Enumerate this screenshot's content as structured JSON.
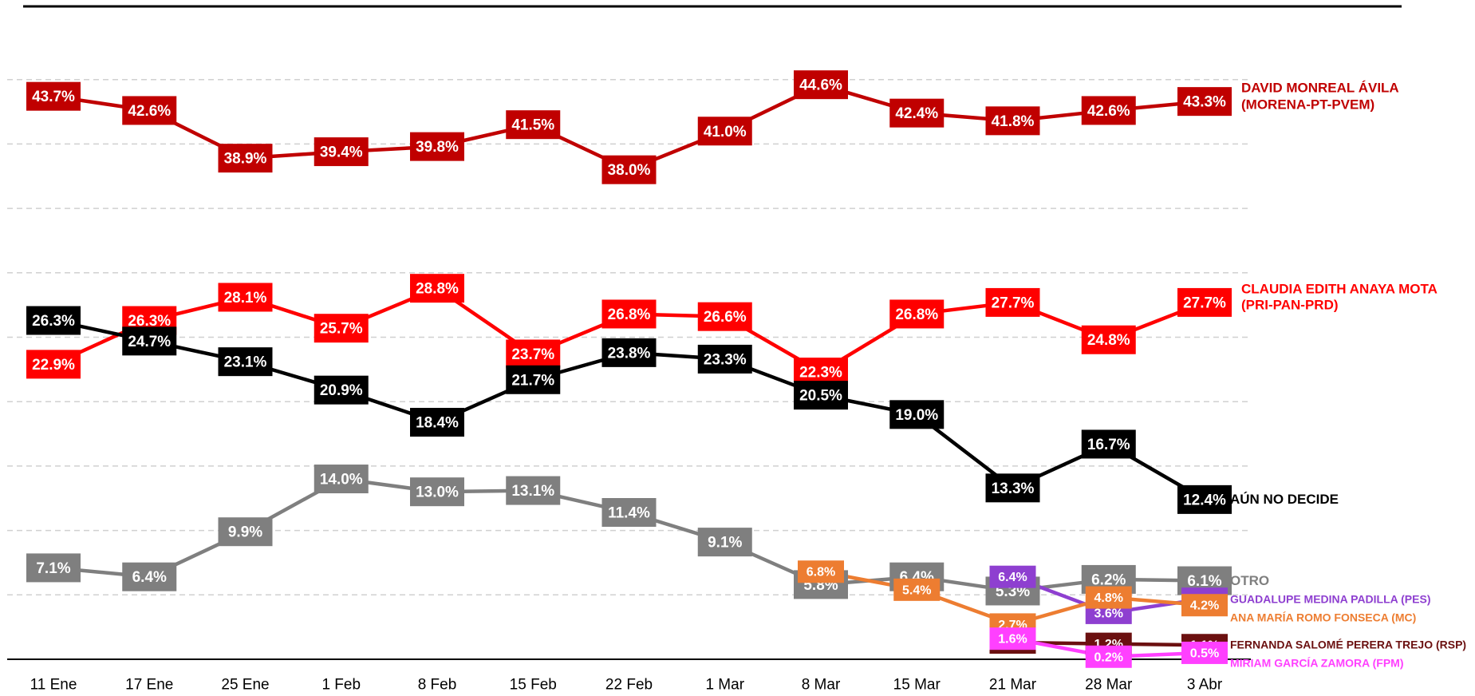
{
  "chart_data": {
    "type": "line",
    "categories": [
      "11 Ene",
      "17 Ene",
      "25 Ene",
      "1 Feb",
      "8 Feb",
      "15 Feb",
      "22 Feb",
      "1 Mar",
      "8 Mar",
      "15 Mar",
      "21 Mar",
      "28 Mar",
      "3 Abr"
    ],
    "ylim": [
      0,
      50
    ],
    "yticks": [
      5,
      10,
      15,
      20,
      25,
      30,
      35,
      40,
      45
    ],
    "grid": true,
    "series": [
      {
        "name": "DAVID MONREAL ÁVILA (MORENA-PT-PVEM)",
        "color": "#c00000",
        "values": [
          43.7,
          42.6,
          38.9,
          39.4,
          39.8,
          41.5,
          38.0,
          41.0,
          44.6,
          42.4,
          41.8,
          42.6,
          43.3
        ],
        "value_labels": [
          "43.7%",
          "42.6%",
          "38.9%",
          "39.4%",
          "39.8%",
          "41.5%",
          "38.0%",
          "41.0%",
          "44.6%",
          "42.4%",
          "41.8%",
          "42.6%",
          "43.3%"
        ]
      },
      {
        "name": "CLAUDIA EDITH ANAYA MOTA (PRI-PAN-PRD)",
        "color": "#ff0000",
        "values": [
          22.9,
          26.3,
          28.1,
          25.7,
          28.8,
          23.7,
          26.8,
          26.6,
          22.3,
          26.8,
          27.7,
          24.8,
          27.7
        ],
        "value_labels": [
          "22.9%",
          "26.3%",
          "28.1%",
          "25.7%",
          "28.8%",
          "23.7%",
          "26.8%",
          "26.6%",
          "22.3%",
          "26.8%",
          "27.7%",
          "24.8%",
          "27.7%"
        ]
      },
      {
        "name": "AÚN NO DECIDE",
        "color": "#000000",
        "values": [
          26.3,
          24.7,
          23.1,
          20.9,
          18.4,
          21.7,
          23.8,
          23.3,
          20.5,
          19.0,
          13.3,
          16.7,
          12.4
        ],
        "value_labels": [
          "26.3%",
          "24.7%",
          "23.1%",
          "20.9%",
          "18.4%",
          "21.7%",
          "23.8%",
          "23.3%",
          "20.5%",
          "19.0%",
          "13.3%",
          "16.7%",
          "12.4%"
        ]
      },
      {
        "name": "OTRO",
        "color": "#7f7f7f",
        "values": [
          7.1,
          6.4,
          9.9,
          14.0,
          13.0,
          13.1,
          11.4,
          9.1,
          5.8,
          6.4,
          5.3,
          6.2,
          6.1
        ],
        "value_labels": [
          "7.1%",
          "6.4%",
          "9.9%",
          "14.0%",
          "13.0%",
          "13.1%",
          "11.4%",
          "9.1%",
          "5.8%",
          "6.4%",
          "5.3%",
          "6.2%",
          "6.1%"
        ]
      },
      {
        "name": "GUADALUPE MEDINA PADILLA  (PES)",
        "color": "#8e3fd0",
        "values": [
          null,
          null,
          null,
          null,
          null,
          null,
          null,
          null,
          null,
          null,
          6.4,
          3.6,
          4.7
        ],
        "value_labels": [
          null,
          null,
          null,
          null,
          null,
          null,
          null,
          null,
          null,
          null,
          "6.4%",
          "3.6%",
          "4.7%"
        ]
      },
      {
        "name": "ANA MARÍA ROMO FONSECA (MC)",
        "color": "#ed7d31",
        "values": [
          null,
          null,
          null,
          null,
          null,
          null,
          null,
          null,
          6.8,
          5.4,
          2.7,
          4.8,
          4.2
        ],
        "value_labels": [
          null,
          null,
          null,
          null,
          null,
          null,
          null,
          null,
          "6.8%",
          "5.4%",
          "2.7%",
          "4.8%",
          "4.2%"
        ]
      },
      {
        "name": "FERNANDA SALOMÉ PERERA TREJO (RSP)",
        "color": "#6b1010",
        "values": [
          null,
          null,
          null,
          null,
          null,
          null,
          null,
          null,
          null,
          null,
          1.3,
          1.2,
          1.1
        ],
        "value_labels": [
          null,
          null,
          null,
          null,
          null,
          null,
          null,
          null,
          null,
          null,
          "1.3%",
          "1.2%",
          "1.1%"
        ]
      },
      {
        "name": "MIRIAM GARCÍA ZAMORA (FPM)",
        "color": "#ff40ff",
        "values": [
          null,
          null,
          null,
          null,
          null,
          null,
          null,
          null,
          null,
          null,
          1.6,
          0.2,
          0.5
        ],
        "value_labels": [
          null,
          null,
          null,
          null,
          null,
          null,
          null,
          null,
          null,
          null,
          "1.6%",
          "0.2%",
          "0.5%"
        ]
      }
    ]
  }
}
